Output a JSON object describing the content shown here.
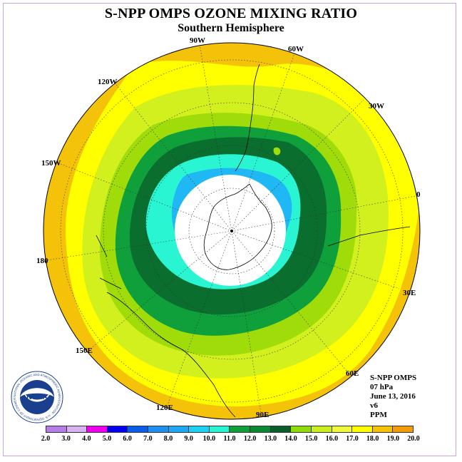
{
  "title": "S-NPP OMPS OZONE MIXING RATIO",
  "subtitle": "Southern Hemisphere",
  "longitude_labels": [
    "90W",
    "60W",
    "30W",
    "0",
    "30E",
    "60E",
    "90E",
    "120E",
    "150E",
    "180",
    "150W",
    "120W"
  ],
  "info": {
    "instrument": "S-NPP OMPS",
    "level": "07 hPa",
    "date": "June 13, 2016",
    "version": "v6",
    "units": "PPM"
  },
  "logo": {
    "text": "NOAA",
    "ring_text": "NATIONAL OCEANIC AND ATMOSPHERIC ADMINISTRATION · U.S. DEPARTMENT OF COMMERCE"
  },
  "colorbar": {
    "ticks": [
      "2.0",
      "3.0",
      "4.0",
      "5.0",
      "6.0",
      "7.0",
      "8.0",
      "9.0",
      "10.0",
      "11.0",
      "12.0",
      "13.0",
      "14.0",
      "15.0",
      "16.0",
      "17.0",
      "18.0",
      "19.0",
      "20.0"
    ],
    "colors": [
      "#b57de8",
      "#d8b2f0",
      "#ee00ee",
      "#0000ee",
      "#0a5de8",
      "#1f8ff0",
      "#1fa8f5",
      "#1fd0f5",
      "#29f5d2",
      "#0fa03c",
      "#0a8a30",
      "#0a5e2a",
      "#8fdc0a",
      "#c8ee1f",
      "#f0fa3c",
      "#ffff00",
      "#f5c20a",
      "#f59a0a",
      "#f56a0a",
      "#f51e0a",
      "#ee0000",
      "#8b5a2b"
    ]
  },
  "colors": {
    "ring_15_16": "#f5c20a",
    "ring_14_15": "#ffff00",
    "ring_13_14": "#d2f01e",
    "ring_12_13": "#a0dc0a",
    "ring_11_12": "#0fa03c",
    "ring_10_11": "#0a6e2e",
    "ring_9_10": "#29f5d2",
    "ring_8_9": "#1fb8f5",
    "polar_cap": "#ffffff"
  }
}
